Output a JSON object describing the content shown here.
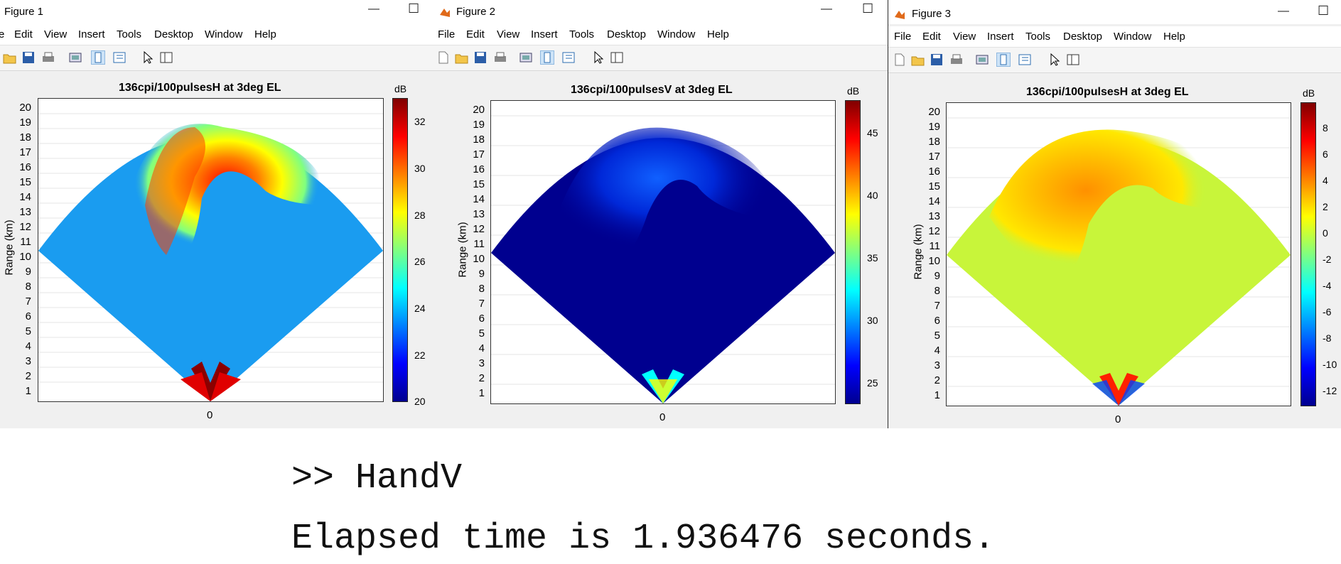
{
  "figures": [
    {
      "title": "Figure 1",
      "menus": [
        "e",
        "Edit",
        "View",
        "Insert",
        "Tools",
        "Desktop",
        "Window",
        "Help"
      ],
      "plot_title": "136cpi/100pulsesH at 3deg EL",
      "ylabel": "Range (km)",
      "yticks": [
        "20",
        "19",
        "18",
        "17",
        "16",
        "15",
        "14",
        "13",
        "12",
        "11",
        "10",
        "9",
        "8",
        "7",
        "6",
        "5",
        "4",
        "3",
        "2",
        "1"
      ],
      "xtick": "0",
      "colorbar_unit": "dB",
      "colorbar_ticks": [
        "32",
        "30",
        "28",
        "26",
        "24",
        "22",
        "20"
      ],
      "background_color": "#1a9cf0"
    },
    {
      "title": "Figure 2",
      "menus": [
        "File",
        "Edit",
        "View",
        "Insert",
        "Tools",
        "Desktop",
        "Window",
        "Help"
      ],
      "plot_title": "136cpi/100pulsesV at 3deg EL",
      "ylabel": "Range (km)",
      "yticks": [
        "20",
        "19",
        "18",
        "17",
        "16",
        "15",
        "14",
        "13",
        "12",
        "11",
        "10",
        "9",
        "8",
        "7",
        "6",
        "5",
        "4",
        "3",
        "2",
        "1"
      ],
      "xtick": "0",
      "colorbar_unit": "dB",
      "colorbar_ticks": [
        "45",
        "40",
        "35",
        "30",
        "25"
      ],
      "background_color": "#00008f"
    },
    {
      "title": "Figure 3",
      "menus": [
        "File",
        "Edit",
        "View",
        "Insert",
        "Tools",
        "Desktop",
        "Window",
        "Help"
      ],
      "plot_title": "136cpi/100pulsesH at 3deg EL",
      "ylabel": "Range (km)",
      "yticks": [
        "20",
        "19",
        "18",
        "17",
        "16",
        "15",
        "14",
        "13",
        "12",
        "11",
        "10",
        "9",
        "8",
        "7",
        "6",
        "5",
        "4",
        "3",
        "2",
        "1"
      ],
      "xtick": "0",
      "colorbar_unit": "dB",
      "colorbar_ticks": [
        "8",
        "6",
        "4",
        "2",
        "0",
        "-2",
        "-4",
        "-6",
        "-8",
        "-10",
        "-12"
      ],
      "background_color": "#c8f53a"
    }
  ],
  "console": {
    "command": ">> HandV",
    "output": "Elapsed time is 1.936476 seconds."
  },
  "colors": {
    "window_bg": "#f0f0f0",
    "jet": [
      "#00008f",
      "#0000ff",
      "#0080ff",
      "#00ffff",
      "#80ff80",
      "#ffff00",
      "#ff8000",
      "#ff0000",
      "#800000"
    ]
  }
}
